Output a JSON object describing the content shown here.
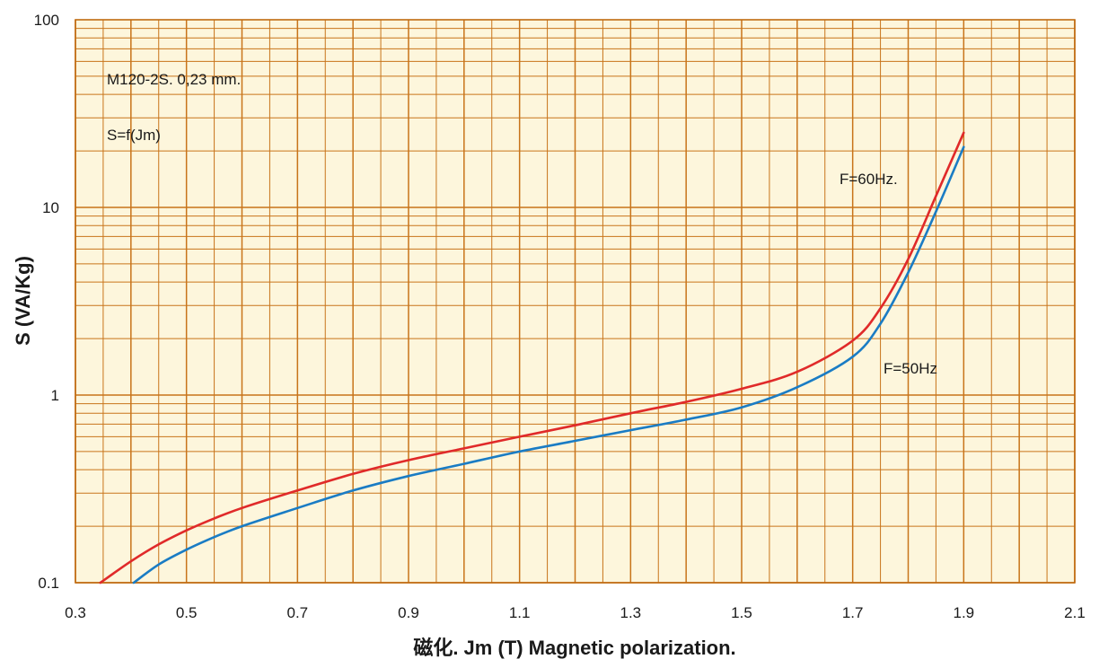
{
  "chart_data": {
    "type": "line",
    "xlabel": "磁化. Jm (T) Magnetic polarization.",
    "ylabel": "S (VA/Kg)",
    "xlim": [
      0.3,
      2.1
    ],
    "ylim": [
      0.1,
      100
    ],
    "yscale": "log",
    "x_ticks": [
      "0.3",
      "0.5",
      "0.7",
      "0.9",
      "1.1",
      "1.3",
      "1.5",
      "1.7",
      "1.9",
      "2.1"
    ],
    "y_ticks": [
      "0.1",
      "1",
      "10",
      "100"
    ],
    "grid": true,
    "annotations": [
      "M120-2S.  0,23 mm.",
      "S=f(Jm)"
    ],
    "series": [
      {
        "name": "F=60Hz.",
        "color": "#e02a2a",
        "x": [
          0.345,
          0.4,
          0.45,
          0.5,
          0.55,
          0.6,
          0.7,
          0.8,
          0.9,
          1.0,
          1.1,
          1.2,
          1.3,
          1.4,
          1.5,
          1.6,
          1.7,
          1.75,
          1.8,
          1.85,
          1.9
        ],
        "y": [
          0.1,
          0.13,
          0.16,
          0.19,
          0.22,
          0.25,
          0.31,
          0.38,
          0.45,
          0.52,
          0.6,
          0.69,
          0.8,
          0.92,
          1.08,
          1.33,
          1.95,
          2.9,
          5.3,
          11.5,
          25.0
        ]
      },
      {
        "name": "F=50Hz",
        "color": "#1a7cc4",
        "x": [
          0.405,
          0.45,
          0.5,
          0.55,
          0.6,
          0.7,
          0.8,
          0.9,
          1.0,
          1.1,
          1.2,
          1.3,
          1.4,
          1.5,
          1.6,
          1.7,
          1.75,
          1.8,
          1.85,
          1.9
        ],
        "y": [
          0.1,
          0.125,
          0.15,
          0.175,
          0.2,
          0.25,
          0.31,
          0.37,
          0.43,
          0.5,
          0.57,
          0.65,
          0.74,
          0.86,
          1.1,
          1.6,
          2.4,
          4.5,
          9.5,
          21.0
        ]
      }
    ]
  }
}
